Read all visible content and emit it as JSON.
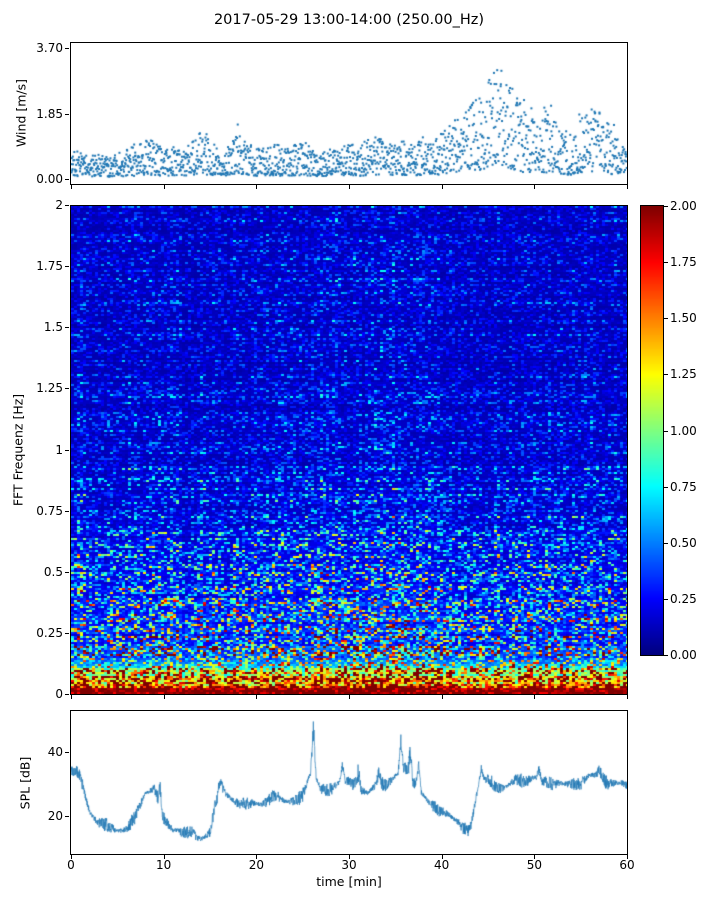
{
  "figure": {
    "title": "2017-05-29 13:00-14:00 (250.00_Hz)",
    "xlabel": "time [min]",
    "background": "#ffffff",
    "accent_blue": "#1f77b4"
  },
  "xticks": [
    "0",
    "10",
    "20",
    "30",
    "40",
    "50",
    "60"
  ],
  "xtick_values": [
    0,
    10,
    20,
    30,
    40,
    50,
    60
  ],
  "chart_data": [
    {
      "id": "wind",
      "type": "scatter",
      "ylabel": "Wind [m/s]",
      "xlim": [
        0,
        60
      ],
      "ylim": [
        0,
        3.7
      ],
      "yticks": [
        "0.00",
        "1.85",
        "3.70"
      ],
      "ytick_values": [
        0,
        1.85,
        3.7
      ],
      "marker_color": "#1f77b4",
      "n_points": 1700,
      "envelope_per_minute": [
        1.0,
        0.7,
        0.6,
        0.7,
        0.6,
        0.7,
        0.8,
        0.9,
        1.1,
        1.0,
        0.8,
        0.9,
        0.7,
        1.0,
        1.4,
        1.1,
        0.8,
        0.9,
        1.3,
        1.1,
        0.8,
        0.9,
        1.0,
        0.8,
        0.9,
        1.1,
        0.8,
        0.7,
        0.8,
        0.9,
        1.0,
        0.8,
        1.1,
        1.2,
        0.9,
        1.0,
        1.1,
        0.9,
        1.2,
        1.0,
        1.3,
        1.5,
        1.7,
        1.9,
        2.4,
        2.9,
        3.1,
        2.8,
        2.3,
        1.8,
        1.6,
        1.9,
        1.7,
        1.4,
        1.2,
        1.6,
        1.9,
        1.8,
        1.5,
        1.1,
        0.7
      ]
    },
    {
      "id": "spectrogram",
      "type": "heatmap",
      "ylabel": "FFT Frequenz [Hz]",
      "xlim": [
        0,
        60
      ],
      "ylim": [
        0,
        2
      ],
      "yticks": [
        "0",
        "0.25",
        "0.5",
        "0.75",
        "1",
        "1.25",
        "1.5",
        "1.75",
        "2"
      ],
      "ytick_values": [
        0,
        0.25,
        0.5,
        0.75,
        1,
        1.25,
        1.5,
        1.75,
        2
      ],
      "colormap": "jet",
      "clim": [
        0,
        2
      ],
      "colorbar_ticks": [
        "2.00",
        "1.75",
        "1.50",
        "1.25",
        "1.00",
        "0.75",
        "0.50",
        "0.25",
        "0.00"
      ],
      "freq_decay_hz": 0.35,
      "low_freq_band_hz": 0.16,
      "intensity_per_minute": [
        1.0,
        1.05,
        0.9,
        0.85,
        0.9,
        0.95,
        0.9,
        1.0,
        1.1,
        1.0,
        0.9,
        0.95,
        0.85,
        0.9,
        1.05,
        0.9,
        0.85,
        0.9,
        1.0,
        0.95,
        0.85,
        0.9,
        0.95,
        0.9,
        0.85,
        0.95,
        0.9,
        1.0,
        1.1,
        1.05,
        1.1,
        1.0,
        1.05,
        1.1,
        1.0,
        1.15,
        1.1,
        1.05,
        1.0,
        0.95,
        0.9,
        0.85,
        0.8,
        0.9,
        1.0,
        0.95,
        0.9,
        0.85,
        0.9,
        0.85,
        0.9,
        0.95,
        0.9,
        0.85,
        0.8,
        0.9,
        0.95,
        0.9,
        0.85,
        0.8,
        0.75
      ]
    },
    {
      "id": "spl",
      "type": "line",
      "ylabel": "SPL [dB]",
      "xlim": [
        0,
        60
      ],
      "ylim": [
        8,
        53
      ],
      "yticks": [
        "20",
        "40"
      ],
      "ytick_values": [
        20,
        40
      ],
      "line_color": "#1f77b4",
      "noise_db": 1.6,
      "envelope_per_minute": [
        34,
        32,
        22,
        18,
        16,
        15,
        17,
        20,
        26,
        29,
        20,
        15,
        14,
        16,
        13,
        14,
        29,
        27,
        24,
        23,
        24,
        25,
        26,
        24,
        25,
        27,
        34,
        28,
        29,
        31,
        30,
        29,
        28,
        30,
        29,
        33,
        36,
        30,
        26,
        24,
        22,
        19,
        17,
        16,
        30,
        31,
        29,
        30,
        31,
        30,
        33,
        31,
        29,
        30,
        31,
        30,
        32,
        33,
        31,
        30,
        29
      ],
      "spikes": [
        [
          9.6,
          31
        ],
        [
          16.2,
          31
        ],
        [
          26.15,
          50.5
        ],
        [
          29.3,
          37
        ],
        [
          31.0,
          36
        ],
        [
          33.2,
          34
        ],
        [
          35.6,
          47
        ],
        [
          36.6,
          41
        ],
        [
          37.5,
          37
        ],
        [
          44.3,
          36
        ],
        [
          50.5,
          37
        ],
        [
          57.0,
          36
        ]
      ]
    }
  ]
}
